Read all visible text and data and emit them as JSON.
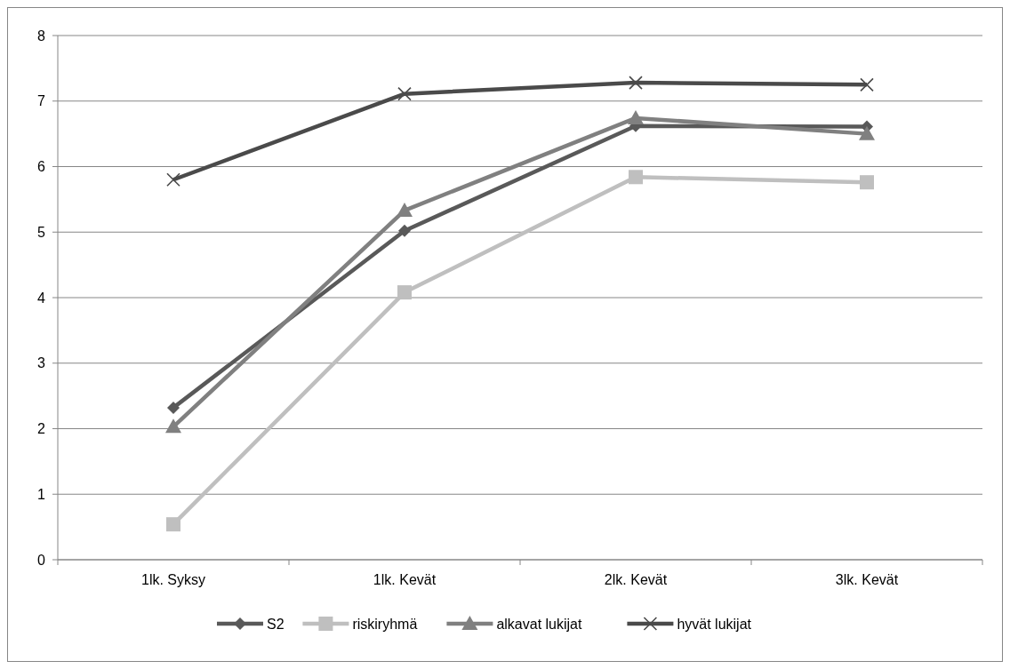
{
  "chart_data": {
    "type": "line",
    "categories": [
      "1lk. Syksy",
      "1lk. Kevät",
      "2lk. Kevät",
      "3lk. Kevät"
    ],
    "series": [
      {
        "name": "S2",
        "color": "#595959",
        "marker": "diamond",
        "values": [
          2.32,
          5.02,
          6.62,
          6.61
        ]
      },
      {
        "name": "riskiryhmä",
        "color": "#bfbfbf",
        "marker": "square",
        "values": [
          0.54,
          4.08,
          5.84,
          5.76
        ]
      },
      {
        "name": "alkavat lukijat",
        "color": "#808080",
        "marker": "triangle",
        "values": [
          2.03,
          5.33,
          6.74,
          6.5
        ]
      },
      {
        "name": "hyvät lukijat",
        "color": "#4a4a4a",
        "marker": "cross",
        "values": [
          5.8,
          7.11,
          7.28,
          7.25
        ]
      }
    ],
    "ylim": [
      0,
      8
    ],
    "yticks": [
      0,
      1,
      2,
      3,
      4,
      5,
      6,
      7,
      8
    ],
    "grid": "y",
    "legend": "bottom",
    "line_style": "solid"
  }
}
